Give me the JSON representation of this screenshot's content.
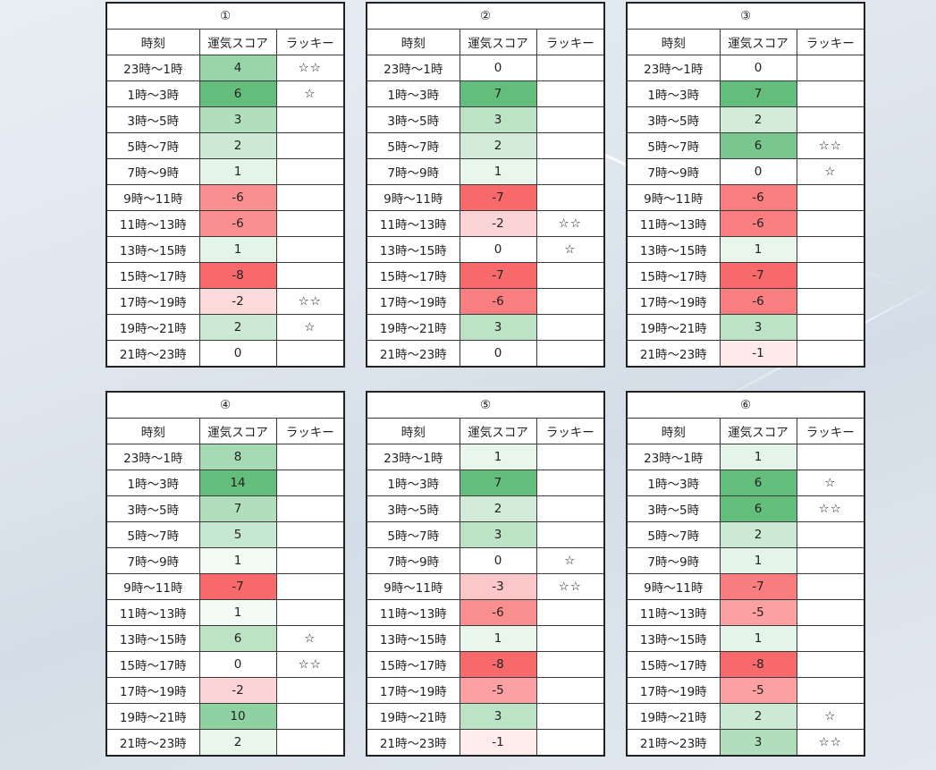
{
  "header_labels": {
    "time": "時刻",
    "score": "運気スコア",
    "lucky": "ラッキー"
  },
  "time_slots": [
    "23時～1時",
    "1時～3時",
    "3時～5時",
    "5時～7時",
    "7時～9時",
    "9時～11時",
    "11時～13時",
    "13時～15時",
    "15時～17時",
    "17時～19時",
    "19時～21時",
    "21時～23時"
  ],
  "tables": [
    {
      "title": "①",
      "scores": [
        4,
        6,
        3,
        2,
        1,
        -6,
        -6,
        1,
        -8,
        -2,
        2,
        0
      ],
      "lucky": [
        "☆☆",
        "☆",
        "",
        "",
        "",
        "",
        "",
        "",
        "",
        "☆☆",
        "☆",
        ""
      ]
    },
    {
      "title": "②",
      "scores": [
        0,
        7,
        3,
        2,
        1,
        -7,
        -2,
        0,
        -7,
        -6,
        3,
        0
      ],
      "lucky": [
        "",
        "",
        "",
        "",
        "",
        "",
        "☆☆",
        "☆",
        "",
        "",
        "",
        ""
      ]
    },
    {
      "title": "③",
      "scores": [
        0,
        7,
        2,
        6,
        0,
        -6,
        -6,
        1,
        -7,
        -6,
        3,
        -1
      ],
      "lucky": [
        "",
        "",
        "",
        "☆☆",
        "☆",
        "",
        "",
        "",
        "",
        "",
        "",
        ""
      ]
    },
    {
      "title": "④",
      "scores": [
        8,
        14,
        7,
        5,
        1,
        -7,
        1,
        6,
        0,
        -2,
        10,
        2
      ],
      "lucky": [
        "",
        "",
        "",
        "",
        "",
        "",
        "",
        "☆",
        "☆☆",
        "",
        "",
        ""
      ]
    },
    {
      "title": "⑤",
      "scores": [
        1,
        7,
        2,
        3,
        0,
        -3,
        -6,
        1,
        -8,
        -5,
        3,
        -1
      ],
      "lucky": [
        "",
        "",
        "",
        "",
        "☆",
        "☆☆",
        "",
        "",
        "",
        "",
        "",
        ""
      ]
    },
    {
      "title": "⑥",
      "scores": [
        1,
        6,
        6,
        2,
        1,
        -7,
        -5,
        1,
        -8,
        -5,
        2,
        3
      ],
      "lucky": [
        "",
        "☆",
        "☆☆",
        "",
        "",
        "",
        "",
        "",
        "",
        "",
        "☆",
        "☆☆"
      ]
    }
  ],
  "colors": {
    "positive_max": "#63be7b",
    "neutral": "#ffffff",
    "negative_max": "#f8696b"
  }
}
